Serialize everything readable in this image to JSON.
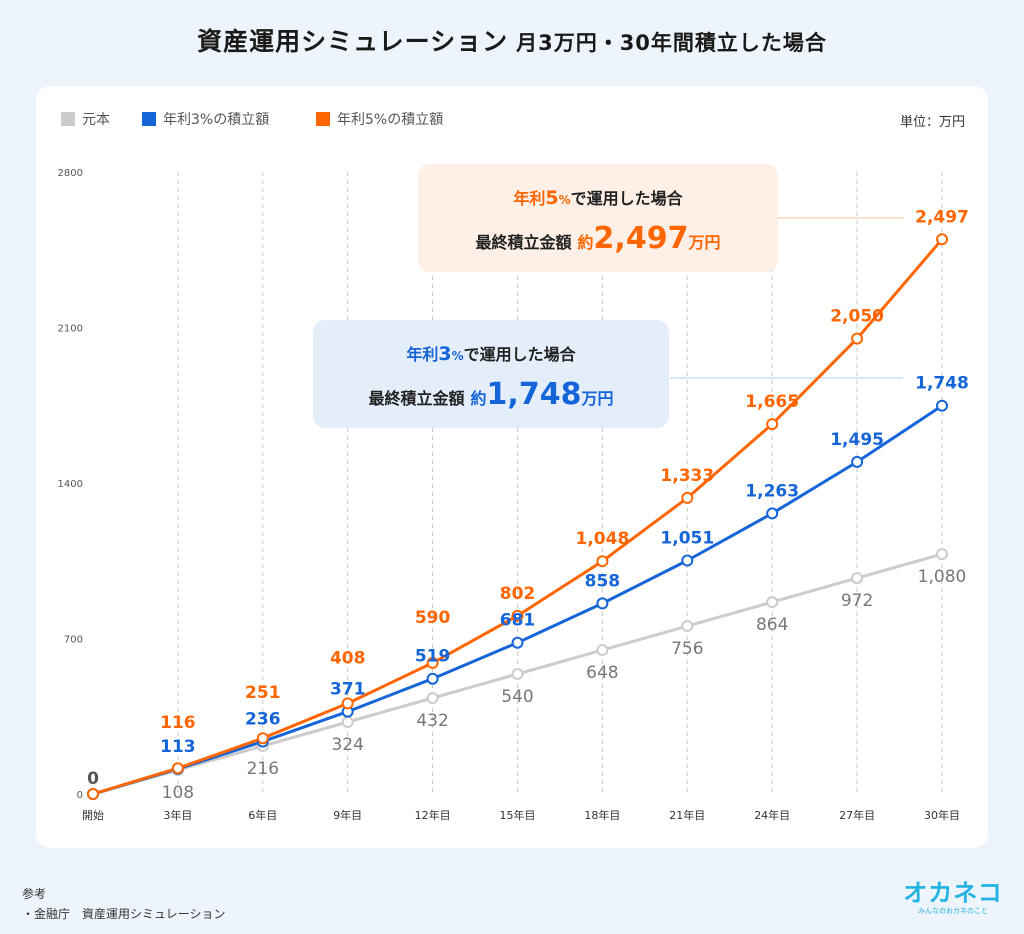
{
  "title": {
    "main": "資産運用シミュレーション",
    "sub": "月3万円・30年間積立した場合"
  },
  "legend": {
    "items": [
      {
        "label": "元本",
        "color": "#cccccc"
      },
      {
        "label": "年利3%の積立額",
        "color": "#1565d8"
      },
      {
        "label": "年利5%の積立額",
        "color": "#ff6600"
      }
    ],
    "unit": "単位：万円"
  },
  "callouts": {
    "five": {
      "line1_pre": "年利",
      "rate": "5",
      "pct": "%",
      "line1_post": "で運用した場合",
      "line2_pre": "最終積立金額",
      "yaku": "約",
      "amount": "2,497",
      "unit": "万円"
    },
    "three": {
      "line1_pre": "年利",
      "rate": "3",
      "pct": "%",
      "line1_post": "で運用した場合",
      "line2_pre": "最終積立金額",
      "yaku": "約",
      "amount": "1,748",
      "unit": "万円"
    }
  },
  "chart_data": {
    "type": "line",
    "categories": [
      "開始",
      "3年目",
      "6年目",
      "9年目",
      "12年目",
      "15年目",
      "18年目",
      "21年目",
      "24年目",
      "27年目",
      "30年目"
    ],
    "ylim": [
      0,
      2800
    ],
    "yticks": [
      0,
      700,
      1400,
      2100,
      2800
    ],
    "grid": "vertical-dashed",
    "legend_position": "top-left",
    "series": [
      {
        "name": "元本",
        "color": "#cccccc",
        "label_color": "#777777",
        "values": [
          0,
          108,
          216,
          324,
          432,
          540,
          648,
          756,
          864,
          972,
          1080
        ],
        "labels": [
          "",
          "108",
          "216",
          "324",
          "432",
          "540",
          "648",
          "756",
          "864",
          "972",
          "1,080"
        ]
      },
      {
        "name": "年利3%の積立額",
        "color": "#1565d8",
        "label_color": "#1565d8",
        "values": [
          0,
          113,
          236,
          371,
          519,
          681,
          858,
          1051,
          1263,
          1495,
          1748
        ],
        "labels": [
          "",
          "113",
          "236",
          "371",
          "519",
          "681",
          "858",
          "1,051",
          "1,263",
          "1,495",
          "1,748"
        ]
      },
      {
        "name": "年利5%の積立額",
        "color": "#ff6600",
        "label_color": "#ff6600",
        "values": [
          0,
          116,
          251,
          408,
          590,
          802,
          1048,
          1333,
          1665,
          2050,
          2497
        ],
        "labels": [
          "0",
          "116",
          "251",
          "408",
          "590",
          "802",
          "1,048",
          "1,333",
          "1,665",
          "2,050",
          "2,497"
        ]
      }
    ]
  },
  "footer": {
    "ref_title": "参考",
    "ref_item": "・金融庁　資産運用シミュレーション",
    "logo": "オカネコ",
    "logo_tagline": "みんなのおカネのこと"
  }
}
